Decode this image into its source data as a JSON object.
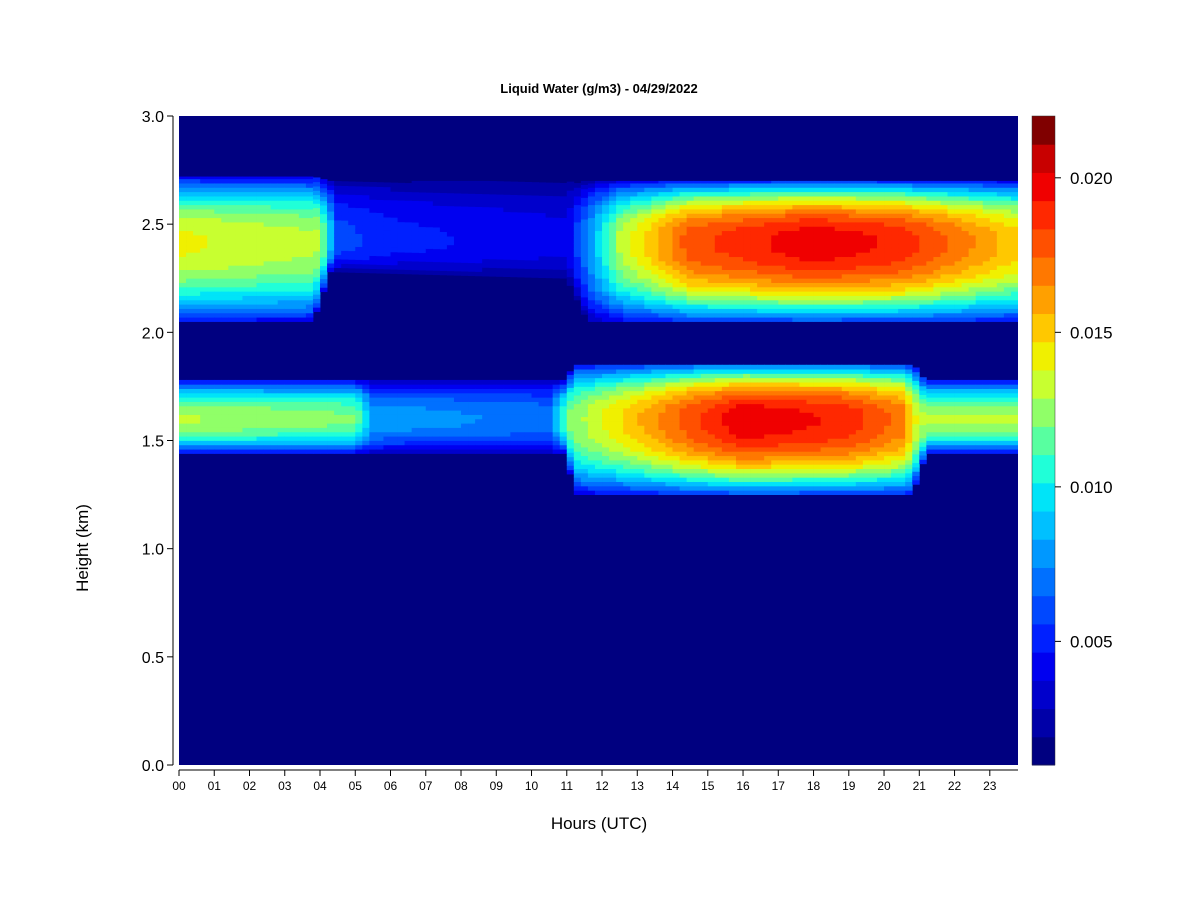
{
  "chart_data": {
    "type": "heatmap",
    "title": "Liquid Water (g/m3) - 04/29/2022",
    "xlabel": "Hours (UTC)",
    "ylabel": "Height (km)",
    "xlim": [
      0,
      23.8
    ],
    "ylim": [
      0,
      3.0
    ],
    "x_ticks": [
      "00",
      "01",
      "02",
      "03",
      "04",
      "05",
      "06",
      "07",
      "08",
      "09",
      "10",
      "11",
      "12",
      "13",
      "14",
      "15",
      "16",
      "17",
      "18",
      "19",
      "20",
      "21",
      "22",
      "23"
    ],
    "y_ticks": [
      "0.0",
      "0.5",
      "1.0",
      "1.5",
      "2.0",
      "2.5",
      "3.0"
    ],
    "colorbar": {
      "min": 0.001,
      "max": 0.022,
      "ticks": [
        "0.005",
        "0.010",
        "0.015",
        "0.020"
      ],
      "tick_values": [
        0.005,
        0.01,
        0.015,
        0.02
      ],
      "colors": [
        "#000080",
        "#0000a8",
        "#0000cc",
        "#0000f0",
        "#0020ff",
        "#0048ff",
        "#0070ff",
        "#0098ff",
        "#00c0ff",
        "#00e4f8",
        "#20ffd8",
        "#58ffa0",
        "#90ff68",
        "#c8ff30",
        "#f0f000",
        "#ffc800",
        "#ffa000",
        "#ff7800",
        "#ff5000",
        "#ff2800",
        "#f00000",
        "#c80000",
        "#800000"
      ]
    },
    "background_value": 0.001,
    "cloud_layers": [
      {
        "name": "upper",
        "bottom_km": 2.05,
        "top_km": 2.72,
        "peak_km": 2.42,
        "time_profile": [
          [
            0,
            0.014
          ],
          [
            4,
            0.013
          ],
          [
            4.5,
            0.006
          ],
          [
            6,
            0.005
          ],
          [
            11,
            0.004
          ],
          [
            12.5,
            0.013
          ],
          [
            14.5,
            0.018
          ],
          [
            18,
            0.02
          ],
          [
            20.5,
            0.019
          ],
          [
            23.8,
            0.015
          ]
        ],
        "depth_profile": [
          [
            0,
            2.05,
            2.72
          ],
          [
            3.8,
            2.05,
            2.72
          ],
          [
            4.3,
            2.28,
            2.7
          ],
          [
            11,
            2.25,
            2.7
          ],
          [
            11.6,
            2.05,
            2.7
          ],
          [
            23.8,
            2.05,
            2.7
          ]
        ]
      },
      {
        "name": "lower",
        "bottom_km": 1.42,
        "top_km": 1.8,
        "peak_km": 1.6,
        "time_profile": [
          [
            0,
            0.013
          ],
          [
            5,
            0.012
          ],
          [
            5.5,
            0.008
          ],
          [
            10.5,
            0.007
          ],
          [
            11,
            0.012
          ],
          [
            12.7,
            0.015
          ],
          [
            14.5,
            0.018
          ],
          [
            16,
            0.02
          ],
          [
            19,
            0.019
          ],
          [
            20.5,
            0.017
          ],
          [
            21,
            0.013
          ],
          [
            23.8,
            0.013
          ]
        ],
        "depth_profile": [
          [
            0,
            1.44,
            1.78
          ],
          [
            11,
            1.44,
            1.78
          ],
          [
            11.2,
            1.25,
            1.86
          ],
          [
            20.8,
            1.25,
            1.86
          ],
          [
            21.2,
            1.44,
            1.78
          ],
          [
            23.8,
            1.44,
            1.78
          ]
        ]
      }
    ],
    "grid": false,
    "legend": "colorbar-right"
  }
}
